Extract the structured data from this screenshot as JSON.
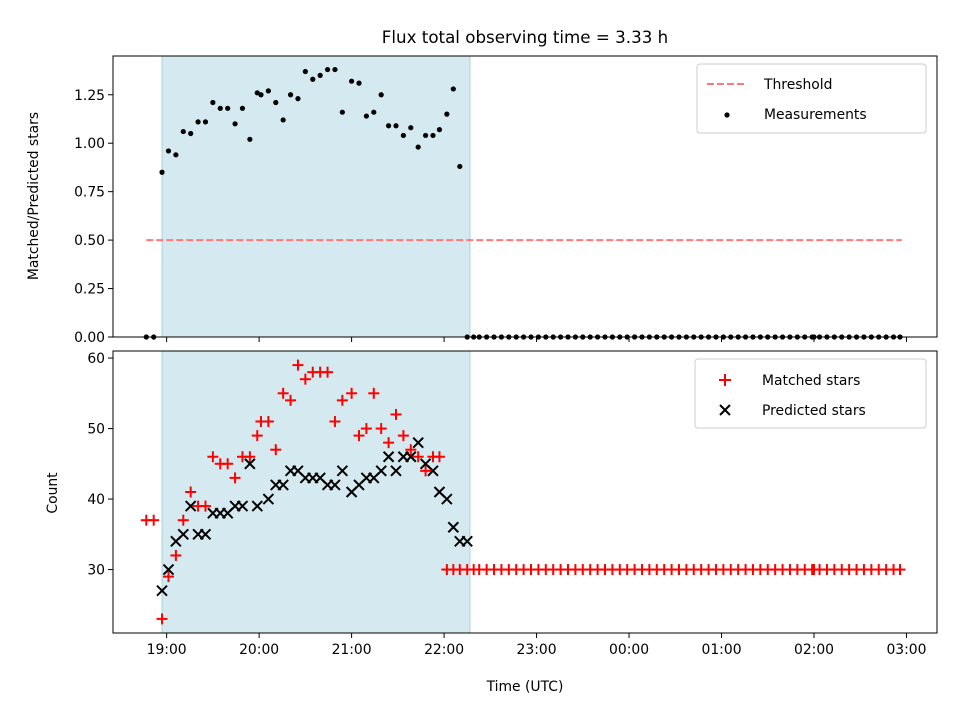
{
  "chart_data": {
    "title": "Flux total observing time = 3.33 h",
    "xlabel": "Time (UTC)",
    "x_tick_labels": [
      "19:00",
      "20:00",
      "21:00",
      "22:00",
      "23:00",
      "00:00",
      "01:00",
      "02:00",
      "03:00"
    ],
    "x_range_hours": [
      18.42,
      27.33
    ],
    "shaded_interval_hours": [
      18.95,
      22.28
    ],
    "colors": {
      "shade": "#d4eaf0",
      "threshold": "#ff7878",
      "matched": "#ff0000",
      "predicted": "#000000",
      "measurement": "#000000"
    },
    "panels": [
      {
        "type": "scatter",
        "ylabel": "Matched/Predicted stars",
        "ylim": [
          0,
          1.45
        ],
        "y_ticks": [
          "0.00",
          "0.25",
          "0.50",
          "0.75",
          "1.00",
          "1.25"
        ],
        "legend": {
          "position": "top-right",
          "entries": [
            "Threshold",
            "Measurements"
          ]
        },
        "threshold": {
          "name": "Threshold",
          "value": 0.5,
          "x_from": 18.78,
          "x_to": 26.95
        },
        "series": [
          {
            "name": "Measurements",
            "x": [
              18.78,
              18.86,
              18.95,
              19.02,
              19.1,
              19.18,
              19.26,
              19.34,
              19.42,
              19.5,
              19.58,
              19.66,
              19.74,
              19.82,
              19.9,
              19.98,
              20.02,
              20.1,
              20.18,
              20.26,
              20.34,
              20.42,
              20.5,
              20.58,
              20.66,
              20.74,
              20.82,
              20.9,
              21.0,
              21.08,
              21.16,
              21.24,
              21.32,
              21.4,
              21.48,
              21.56,
              21.64,
              21.72,
              21.8,
              21.88,
              21.95,
              22.03,
              22.1,
              22.17,
              22.25,
              22.32,
              22.38,
              22.46,
              22.54,
              22.62,
              22.7,
              22.78,
              22.86,
              22.94,
              23.02,
              23.1,
              23.18,
              23.26,
              23.34,
              23.42,
              23.5,
              23.58,
              23.66,
              23.74,
              23.82,
              23.9,
              23.98,
              24.06,
              24.14,
              24.22,
              24.3,
              24.38,
              24.46,
              24.54,
              24.62,
              24.7,
              24.78,
              24.86,
              24.94,
              25.02,
              25.1,
              25.18,
              25.26,
              25.34,
              25.42,
              25.5,
              25.58,
              25.66,
              25.74,
              25.82,
              25.9,
              25.98,
              26.0,
              26.06,
              26.14,
              26.22,
              26.3,
              26.38,
              26.46,
              26.54,
              26.62,
              26.7,
              26.78,
              26.86,
              26.93
            ],
            "y": [
              0,
              0,
              0.85,
              0.96,
              0.94,
              1.06,
              1.05,
              1.11,
              1.11,
              1.21,
              1.18,
              1.18,
              1.1,
              1.18,
              1.02,
              1.26,
              1.25,
              1.27,
              1.21,
              1.12,
              1.25,
              1.23,
              1.37,
              1.33,
              1.35,
              1.38,
              1.38,
              1.16,
              1.32,
              1.31,
              1.14,
              1.16,
              1.25,
              1.09,
              1.09,
              1.04,
              1.08,
              0.98,
              1.04,
              1.04,
              1.07,
              1.15,
              1.28,
              0.88,
              0,
              0,
              0,
              0,
              0,
              0,
              0,
              0,
              0,
              0,
              0,
              0,
              0,
              0,
              0,
              0,
              0,
              0,
              0,
              0,
              0,
              0,
              0,
              0,
              0,
              0,
              0,
              0,
              0,
              0,
              0,
              0,
              0,
              0,
              0,
              0,
              0,
              0,
              0,
              0,
              0,
              0,
              0,
              0,
              0,
              0,
              0,
              0,
              0,
              0,
              0,
              0,
              0,
              0,
              0,
              0,
              0,
              0,
              0,
              0,
              0
            ]
          }
        ]
      },
      {
        "type": "scatter",
        "ylabel": "Count",
        "ylim": [
          21,
          61
        ],
        "y_ticks": [
          "30",
          "40",
          "50",
          "60"
        ],
        "legend": {
          "position": "top-right",
          "entries": [
            "Matched stars",
            "Predicted stars"
          ]
        },
        "series": [
          {
            "name": "Matched stars",
            "x": [
              18.78,
              18.86,
              18.95,
              19.02,
              19.1,
              19.18,
              19.26,
              19.34,
              19.42,
              19.5,
              19.58,
              19.66,
              19.74,
              19.82,
              19.9,
              19.98,
              20.02,
              20.1,
              20.18,
              20.26,
              20.34,
              20.42,
              20.5,
              20.58,
              20.66,
              20.74,
              20.82,
              20.9,
              21.0,
              21.08,
              21.16,
              21.24,
              21.32,
              21.4,
              21.48,
              21.56,
              21.64,
              21.72,
              21.8,
              21.88,
              21.95,
              22.03,
              22.1,
              22.17,
              22.25,
              22.32,
              22.38,
              22.46,
              22.54,
              22.62,
              22.7,
              22.78,
              22.86,
              22.94,
              23.02,
              23.1,
              23.18,
              23.26,
              23.34,
              23.42,
              23.5,
              23.58,
              23.66,
              23.74,
              23.82,
              23.9,
              23.98,
              24.06,
              24.14,
              24.22,
              24.3,
              24.38,
              24.46,
              24.54,
              24.62,
              24.7,
              24.78,
              24.86,
              24.94,
              25.02,
              25.1,
              25.18,
              25.26,
              25.34,
              25.42,
              25.5,
              25.58,
              25.66,
              25.74,
              25.82,
              25.9,
              25.98,
              26.0,
              26.06,
              26.14,
              26.22,
              26.3,
              26.38,
              26.46,
              26.54,
              26.62,
              26.7,
              26.78,
              26.86,
              26.93
            ],
            "y": [
              37,
              37,
              23,
              29,
              32,
              37,
              41,
              39,
              39,
              46,
              45,
              45,
              43,
              46,
              46,
              49,
              51,
              51,
              47,
              55,
              54,
              59,
              57,
              58,
              58,
              58,
              51,
              54,
              55,
              49,
              50,
              55,
              50,
              48,
              52,
              49,
              47,
              46,
              44,
              46,
              46,
              30,
              30,
              30,
              30,
              30,
              30,
              30,
              30,
              30,
              30,
              30,
              30,
              30,
              30,
              30,
              30,
              30,
              30,
              30,
              30,
              30,
              30,
              30,
              30,
              30,
              30,
              30,
              30,
              30,
              30,
              30,
              30,
              30,
              30,
              30,
              30,
              30,
              30,
              30,
              30,
              30,
              30,
              30,
              30,
              30,
              30,
              30,
              30,
              30,
              30,
              30,
              30,
              30,
              30,
              30,
              30,
              30,
              30,
              30,
              30,
              30,
              30,
              30,
              30
            ]
          },
          {
            "name": "Predicted stars",
            "x": [
              18.95,
              19.02,
              19.1,
              19.18,
              19.26,
              19.34,
              19.42,
              19.5,
              19.58,
              19.66,
              19.74,
              19.82,
              19.9,
              19.98,
              20.1,
              20.18,
              20.26,
              20.34,
              20.42,
              20.5,
              20.58,
              20.66,
              20.74,
              20.82,
              20.9,
              21.0,
              21.08,
              21.16,
              21.24,
              21.32,
              21.4,
              21.48,
              21.56,
              21.64,
              21.72,
              21.8,
              21.88,
              21.95,
              22.03,
              22.1,
              22.17,
              22.25
            ],
            "y": [
              27,
              30,
              34,
              35,
              39,
              35,
              35,
              38,
              38,
              38,
              39,
              39,
              45,
              39,
              40,
              42,
              42,
              44,
              44,
              43,
              43,
              43,
              42,
              42,
              44,
              41,
              42,
              43,
              43,
              44,
              46,
              44,
              46,
              46,
              48,
              45,
              44,
              41,
              40,
              36,
              34,
              34
            ]
          }
        ]
      }
    ]
  }
}
